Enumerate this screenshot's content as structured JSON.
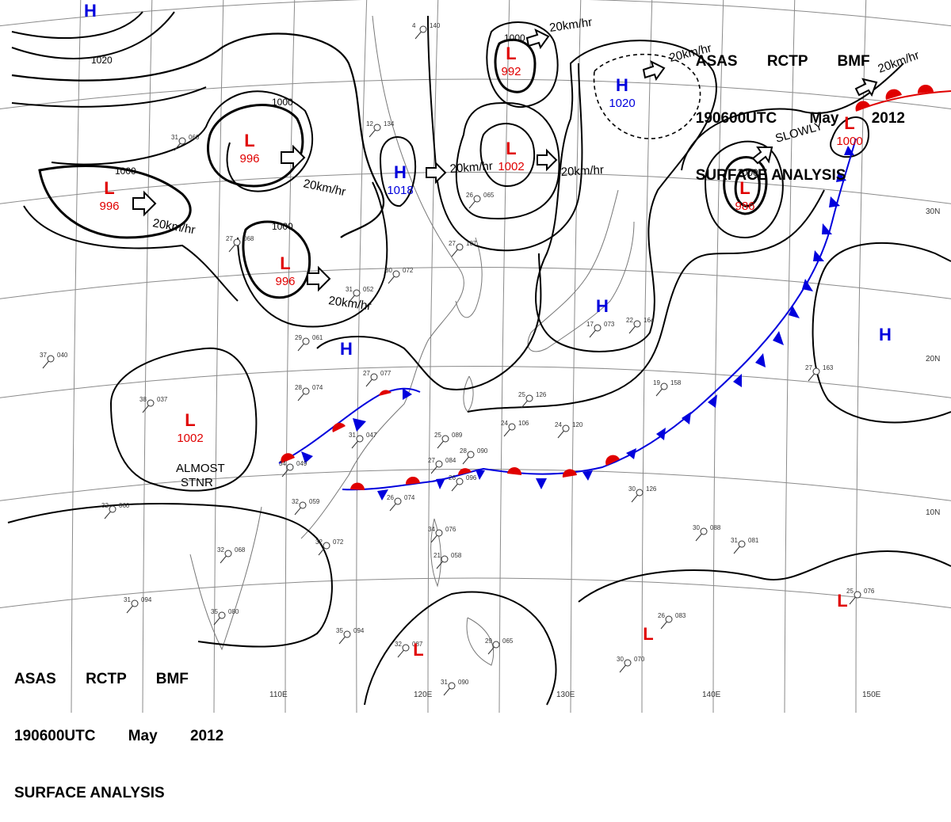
{
  "header": {
    "line1": "ASAS RCTP BMF",
    "line2": "190600UTC May 2012",
    "line3": "SURFACE ANALYSIS"
  },
  "colors": {
    "low": "#e00000",
    "high": "#0000dd",
    "isobar": "#000000",
    "grid": "#888888"
  },
  "grid_labels": {
    "longitudes": [
      "110E",
      "120E",
      "130E",
      "140E",
      "150E"
    ],
    "latitudes": [
      "30N",
      "20N",
      "10N"
    ]
  },
  "pressure_centers": [
    {
      "id": "low-996-west",
      "letter": "L",
      "value": "996"
    },
    {
      "id": "low-996-north",
      "letter": "L",
      "value": "996"
    },
    {
      "id": "low-996-mid",
      "letter": "L",
      "value": "996"
    },
    {
      "id": "low-992",
      "letter": "L",
      "value": "992"
    },
    {
      "id": "low-1002-north",
      "letter": "L",
      "value": "1002"
    },
    {
      "id": "low-1002-south",
      "letter": "L",
      "value": "1002"
    },
    {
      "id": "low-986",
      "letter": "L",
      "value": "986"
    },
    {
      "id": "low-1000-east",
      "letter": "L",
      "value": "1000"
    },
    {
      "id": "low-south-1",
      "letter": "L",
      "value": ""
    },
    {
      "id": "low-south-2",
      "letter": "L",
      "value": ""
    },
    {
      "id": "low-south-3",
      "letter": "L",
      "value": ""
    },
    {
      "id": "high-1018",
      "letter": "H",
      "value": "1018"
    },
    {
      "id": "high-1020",
      "letter": "H",
      "value": "1020"
    },
    {
      "id": "high-topleft",
      "letter": "H",
      "value": ""
    },
    {
      "id": "high-china",
      "letter": "H",
      "value": ""
    },
    {
      "id": "high-japan",
      "letter": "H",
      "value": ""
    },
    {
      "id": "high-pacific",
      "letter": "H",
      "value": ""
    }
  ],
  "motion_labels": [
    {
      "id": "m1",
      "text": "20km/hr"
    },
    {
      "id": "m2",
      "text": "20km/hr"
    },
    {
      "id": "m3",
      "text": "20km/hr"
    },
    {
      "id": "m4",
      "text": "20km/hr"
    },
    {
      "id": "m5",
      "text": "20km/hr"
    },
    {
      "id": "m6",
      "text": "20km/hr"
    },
    {
      "id": "m7",
      "text": "20km/hr"
    },
    {
      "id": "m8",
      "text": "20km/hr"
    },
    {
      "id": "m9",
      "text": "SLOWLY"
    },
    {
      "id": "m10",
      "text": "ALMOST"
    },
    {
      "id": "m11",
      "text": "STNR"
    }
  ],
  "isobar_labels": [
    {
      "id": "i1",
      "text": "1020"
    },
    {
      "id": "i2",
      "text": "1000"
    },
    {
      "id": "i3",
      "text": "1000"
    },
    {
      "id": "i4",
      "text": "1000"
    },
    {
      "id": "i5",
      "text": "1000"
    },
    {
      "id": "i6",
      "text": "1000"
    }
  ],
  "station_plots": [
    {
      "id": "s1",
      "temp": "27",
      "pres": "077"
    },
    {
      "id": "s2",
      "temp": "28",
      "pres": "074"
    },
    {
      "id": "s3",
      "temp": "31",
      "pres": "047"
    },
    {
      "id": "s4",
      "temp": "25",
      "pres": "089"
    },
    {
      "id": "s5",
      "temp": "24",
      "pres": "106"
    },
    {
      "id": "s6",
      "temp": "32",
      "pres": "060"
    },
    {
      "id": "s7",
      "temp": "32",
      "pres": "068"
    },
    {
      "id": "s8",
      "temp": "32",
      "pres": "072"
    },
    {
      "id": "s9",
      "temp": "31",
      "pres": "094"
    },
    {
      "id": "s10",
      "temp": "35",
      "pres": "080"
    },
    {
      "id": "s11",
      "temp": "35",
      "pres": "094"
    },
    {
      "id": "s12",
      "temp": "32",
      "pres": "087"
    },
    {
      "id": "s13",
      "temp": "31",
      "pres": "090"
    },
    {
      "id": "s14",
      "temp": "34",
      "pres": "076"
    },
    {
      "id": "s15",
      "temp": "30",
      "pres": "088"
    },
    {
      "id": "s16",
      "temp": "31",
      "pres": "081"
    },
    {
      "id": "s17",
      "temp": "29",
      "pres": "061"
    },
    {
      "id": "s18",
      "temp": "38",
      "pres": "037"
    },
    {
      "id": "s19",
      "temp": "27",
      "pres": "107"
    },
    {
      "id": "s20",
      "temp": "26",
      "pres": "065"
    },
    {
      "id": "s21",
      "temp": "25",
      "pres": "126"
    },
    {
      "id": "s22",
      "temp": "19",
      "pres": "158"
    },
    {
      "id": "s23",
      "temp": "27",
      "pres": "163"
    },
    {
      "id": "s24",
      "temp": "25",
      "pres": "076"
    },
    {
      "id": "s25",
      "temp": "26",
      "pres": "083"
    },
    {
      "id": "s26",
      "temp": "30",
      "pres": "070"
    },
    {
      "id": "s27",
      "temp": "32",
      "pres": "059"
    },
    {
      "id": "s28",
      "temp": "34",
      "pres": "049"
    },
    {
      "id": "s29",
      "temp": "30",
      "pres": "126"
    },
    {
      "id": "s30",
      "temp": "31",
      "pres": "052"
    },
    {
      "id": "s31",
      "temp": "30",
      "pres": "072"
    },
    {
      "id": "s32",
      "temp": "12",
      "pres": "134"
    },
    {
      "id": "s33",
      "temp": "4",
      "pres": "140"
    },
    {
      "id": "s34",
      "temp": "24",
      "pres": "120"
    },
    {
      "id": "s35",
      "temp": "28",
      "pres": "090"
    },
    {
      "id": "s36",
      "temp": "27",
      "pres": "084"
    },
    {
      "id": "s37",
      "temp": "26",
      "pres": "096"
    },
    {
      "id": "s38",
      "temp": "26",
      "pres": "074"
    },
    {
      "id": "s39",
      "temp": "21",
      "pres": "058"
    },
    {
      "id": "s40",
      "temp": "29",
      "pres": "065"
    },
    {
      "id": "s41",
      "temp": "37",
      "pres": "040"
    },
    {
      "id": "s42",
      "temp": "31",
      "pres": "060"
    },
    {
      "id": "s43",
      "temp": "27",
      "pres": "068"
    },
    {
      "id": "s44",
      "temp": "22",
      "pres": "164"
    },
    {
      "id": "s45",
      "temp": "17",
      "pres": "073"
    }
  ]
}
